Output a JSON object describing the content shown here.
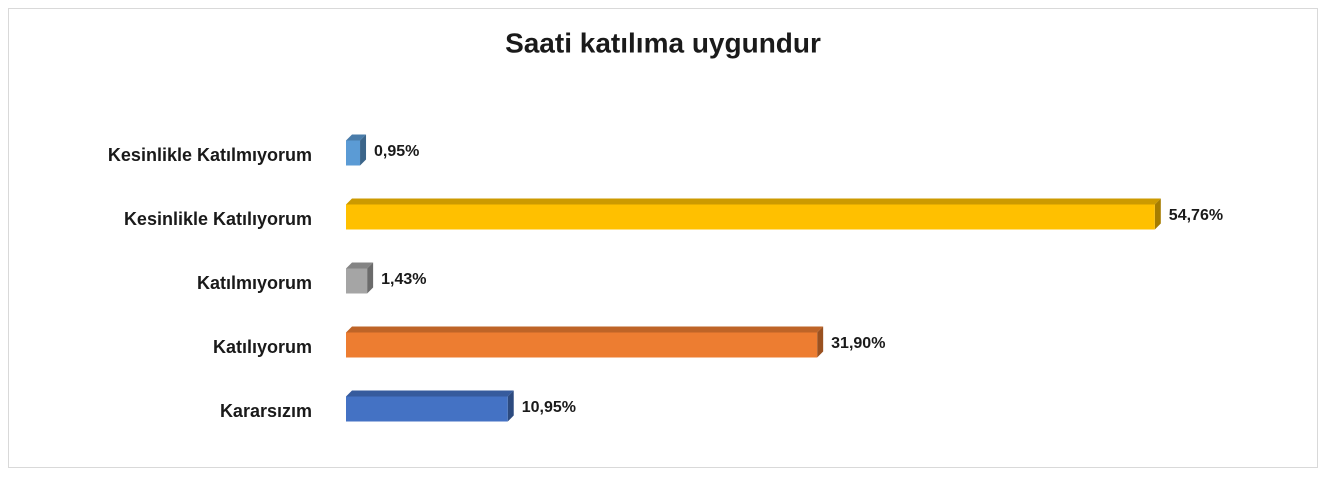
{
  "chart_data": {
    "type": "bar3d",
    "title": "Saati katılıma uygundur",
    "categories": [
      "Kesinlikle Katılmıyorum",
      "Kesinlikle Katılıyorum",
      "Katılmıyorum",
      "Katılıyorum",
      "Kararsızım"
    ],
    "values": [
      0.95,
      54.76,
      1.43,
      31.9,
      10.95
    ],
    "value_labels": [
      "0,95%",
      "54,76%",
      "1,43%",
      "31,90%",
      "10,95%"
    ],
    "colors": [
      "#5b9bd5",
      "#ffc000",
      "#a5a5a5",
      "#ed7d31",
      "#4472c4"
    ]
  }
}
